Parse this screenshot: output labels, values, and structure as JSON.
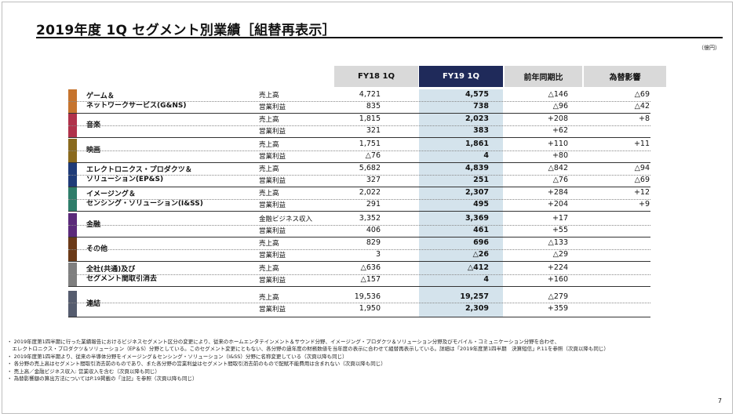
{
  "title": "2019年度 1Q セグメント別業績［組替再表示］",
  "unit": "（億円）",
  "headers": [
    "FY18 1Q",
    "FY19 1Q",
    "前年同期比",
    "為替影響"
  ],
  "colors": {
    "fy19_header": "#1f2a5a",
    "fy19_column": "#d4e3ec",
    "header_gray": "#d9d9d9"
  },
  "segments": [
    {
      "name": [
        "ゲーム＆",
        "ネットワークサービス(G&NS)"
      ],
      "color": "#c6742e",
      "rows": [
        {
          "metric": "売上高",
          "fy18": "4,721",
          "fy19": "4,575",
          "yoy": "△146",
          "fx": "△69"
        },
        {
          "metric": "営業利益",
          "fy18": "835",
          "fy19": "738",
          "yoy": "△96",
          "fx": "△42"
        }
      ]
    },
    {
      "name": [
        "音楽"
      ],
      "color": "#b0324a",
      "rows": [
        {
          "metric": "売上高",
          "fy18": "1,815",
          "fy19": "2,023",
          "yoy": "+208",
          "fx": "+8"
        },
        {
          "metric": "営業利益",
          "fy18": "321",
          "fy19": "383",
          "yoy": "+62",
          "fx": ""
        }
      ]
    },
    {
      "name": [
        "映画"
      ],
      "color": "#8a6a1e",
      "rows": [
        {
          "metric": "売上高",
          "fy18": "1,751",
          "fy19": "1,861",
          "yoy": "+110",
          "fx": "+11"
        },
        {
          "metric": "営業利益",
          "fy18": "△76",
          "fy19": "4",
          "yoy": "+80",
          "fx": ""
        }
      ]
    },
    {
      "name": [
        "エレクトロニクス・プロダクツ＆",
        "ソリューション(EP&S)"
      ],
      "color": "#1f3b78",
      "rows": [
        {
          "metric": "売上高",
          "fy18": "5,682",
          "fy19": "4,839",
          "yoy": "△842",
          "fx": "△94"
        },
        {
          "metric": "営業利益",
          "fy18": "327",
          "fy19": "251",
          "yoy": "△76",
          "fx": "△69"
        }
      ]
    },
    {
      "name": [
        "イメージング＆",
        "センシング・ソリューション(I&SS)"
      ],
      "color": "#2e7d6a",
      "rows": [
        {
          "metric": "売上高",
          "fy18": "2,022",
          "fy19": "2,307",
          "yoy": "+284",
          "fx": "+12"
        },
        {
          "metric": "営業利益",
          "fy18": "291",
          "fy19": "495",
          "yoy": "+204",
          "fx": "+9"
        }
      ]
    },
    {
      "name": [
        "金融"
      ],
      "color": "#5b2a7a",
      "rows": [
        {
          "metric": "金融ビジネス収入",
          "fy18": "3,352",
          "fy19": "3,369",
          "yoy": "+17",
          "fx": ""
        },
        {
          "metric": "営業利益",
          "fy18": "406",
          "fy19": "461",
          "yoy": "+55",
          "fx": ""
        }
      ]
    },
    {
      "name": [
        "その他"
      ],
      "color": "#6b3a18",
      "rows": [
        {
          "metric": "売上高",
          "fy18": "829",
          "fy19": "696",
          "yoy": "△133",
          "fx": ""
        },
        {
          "metric": "営業利益",
          "fy18": "3",
          "fy19": "△26",
          "yoy": "△29",
          "fx": ""
        }
      ]
    },
    {
      "name": [
        "全社(共通)及び",
        "セグメント間取引消去"
      ],
      "color": "#7f7f7f",
      "rows": [
        {
          "metric": "売上高",
          "fy18": "△636",
          "fy19": "△412",
          "yoy": "+224",
          "fx": ""
        },
        {
          "metric": "営業利益",
          "fy18": "△157",
          "fy19": "4",
          "yoy": "+160",
          "fx": ""
        }
      ]
    },
    {
      "name": [
        "連結"
      ],
      "color": "#555c6e",
      "rows": [
        {
          "metric": "売上高",
          "fy18": "19,536",
          "fy19": "19,257",
          "yoy": "△279",
          "fx": ""
        },
        {
          "metric": "営業利益",
          "fy18": "1,950",
          "fy19": "2,309",
          "yoy": "+359",
          "fx": ""
        }
      ]
    }
  ],
  "notes": [
    "・ 2019年度第1四半期に行った業績報告におけるビジネスセグメント区分の変更により、従来のホームエンタテインメント＆サウンド分野、イメージング・プロダクツ＆ソリューション分野及びモバイル・コミュニケーション分野を合わせ、",
    "　エレクトロニクス・プロダクツ＆ソリューション（EP＆S）分野としている。このセグメント変更にともない、各分野の過年度の財務数値を当年度の表示に合わせて組替再表示している。詳細は「2019年度第1四半期　決算短信」P.11を参照（次頁以降も同じ）",
    "・ 2019年度第1四半期より、従来の半導体分野をイメージング＆センシング・ソリューション（I&SS）分野に名称変更している（次頁以降も同じ）",
    "・ 各分野の売上高はセグメント間取引消去前のものであり、また各分野の営業利益はセグメント間取引消去前のもので配賦不能費用は含まれない（次頁以降も同じ）",
    "・ 売上高／金融ビジネス収入: 営業収入を含む（次頁以降も同じ）",
    "・ 為替影響額の算出方法についてはP.19掲載の「注記」を参照（次頁以降も同じ）"
  ],
  "page_number": "7"
}
